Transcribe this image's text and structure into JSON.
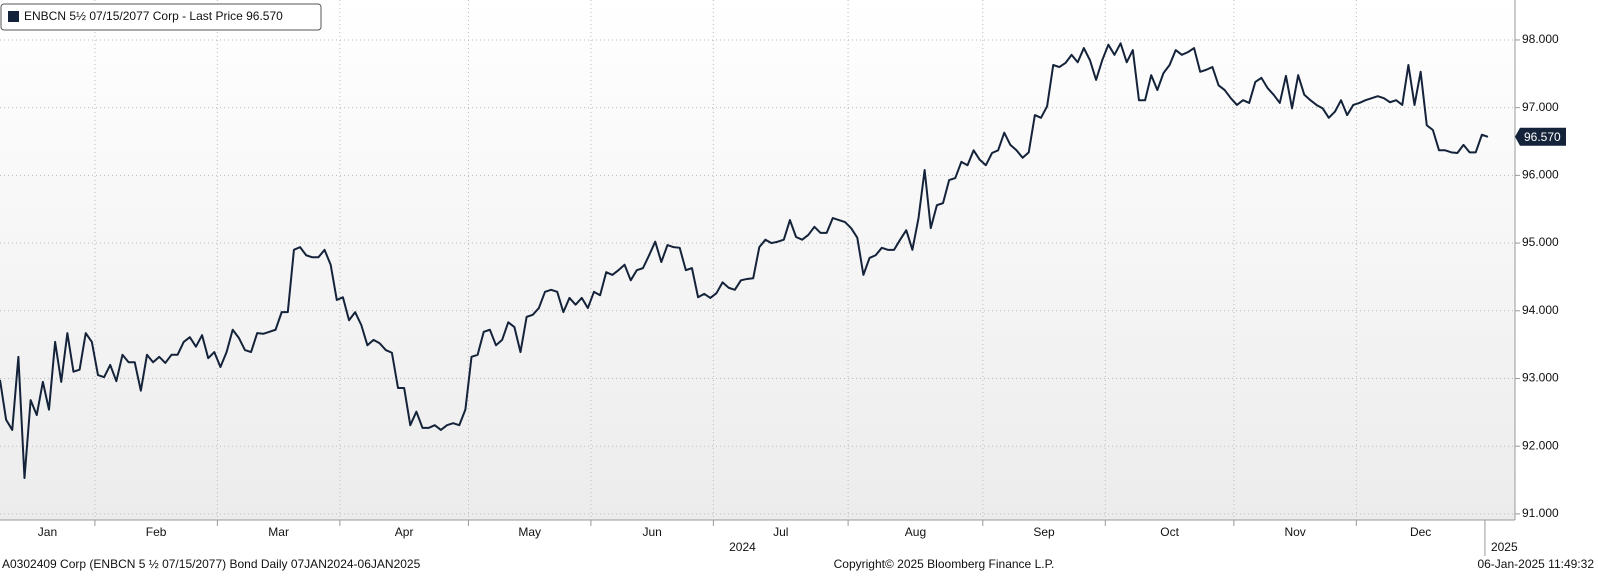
{
  "chart_data": {
    "type": "line",
    "series": [
      {
        "name": "ENBCN 5½ 07/15/2077 Corp - Last Price 96.570",
        "color": "#14233a",
        "values": [
          92.98,
          92.39,
          92.24,
          93.32,
          91.53,
          92.68,
          92.46,
          92.95,
          92.54,
          93.54,
          92.95,
          93.67,
          93.1,
          93.13,
          93.67,
          93.54,
          93.05,
          93.02,
          93.2,
          92.96,
          93.35,
          93.24,
          93.24,
          92.82,
          93.35,
          93.24,
          93.32,
          93.23,
          93.35,
          93.35,
          93.54,
          93.61,
          93.47,
          93.64,
          93.3,
          93.39,
          93.17,
          93.39,
          93.72,
          93.6,
          93.42,
          93.39,
          93.67,
          93.66,
          93.69,
          93.72,
          93.98,
          93.98,
          94.9,
          94.94,
          94.82,
          94.79,
          94.79,
          94.9,
          94.68,
          94.16,
          94.2,
          93.86,
          93.98,
          93.79,
          93.49,
          93.57,
          93.52,
          93.42,
          93.38,
          92.86,
          92.86,
          92.31,
          92.51,
          92.27,
          92.27,
          92.31,
          92.24,
          92.31,
          92.34,
          92.31,
          92.54,
          93.32,
          93.35,
          93.69,
          93.72,
          93.49,
          93.57,
          93.83,
          93.76,
          93.39,
          93.91,
          93.94,
          94.04,
          94.28,
          94.31,
          94.28,
          93.98,
          94.19,
          94.09,
          94.19,
          94.04,
          94.28,
          94.23,
          94.57,
          94.53,
          94.6,
          94.68,
          94.45,
          94.6,
          94.63,
          94.82,
          95.02,
          94.72,
          94.97,
          94.94,
          94.93,
          94.6,
          94.63,
          94.2,
          94.25,
          94.19,
          94.26,
          94.42,
          94.34,
          94.31,
          94.45,
          94.47,
          94.48,
          94.94,
          95.05,
          95.0,
          95.02,
          95.05,
          95.34,
          95.09,
          95.05,
          95.12,
          95.24,
          95.15,
          95.15,
          95.37,
          95.34,
          95.31,
          95.22,
          95.08,
          94.53,
          94.78,
          94.82,
          94.93,
          94.9,
          94.9,
          95.05,
          95.19,
          94.9,
          95.37,
          96.08,
          95.22,
          95.56,
          95.59,
          95.93,
          95.96,
          96.2,
          96.15,
          96.37,
          96.23,
          96.15,
          96.33,
          96.37,
          96.63,
          96.45,
          96.37,
          96.26,
          96.34,
          96.89,
          96.85,
          97.02,
          97.63,
          97.6,
          97.66,
          97.78,
          97.67,
          97.88,
          97.7,
          97.41,
          97.7,
          97.93,
          97.78,
          97.95,
          97.67,
          97.85,
          97.11,
          97.11,
          97.48,
          97.26,
          97.51,
          97.63,
          97.85,
          97.78,
          97.82,
          97.88,
          97.53,
          97.56,
          97.6,
          97.33,
          97.26,
          97.14,
          97.04,
          97.11,
          97.07,
          97.38,
          97.44,
          97.29,
          97.19,
          97.07,
          97.47,
          96.99,
          97.48,
          97.19,
          97.11,
          97.04,
          96.99,
          96.85,
          96.94,
          97.11,
          96.89,
          97.04,
          97.07,
          97.11,
          97.14,
          97.17,
          97.14,
          97.08,
          97.11,
          97.04,
          97.63,
          97.04,
          97.53,
          96.74,
          96.67,
          96.37,
          96.37,
          96.34,
          96.33,
          96.45,
          96.34,
          96.34,
          96.6,
          96.57
        ]
      }
    ],
    "categories": [
      "Jan",
      null,
      null,
      null,
      null,
      null,
      null,
      null,
      null,
      null,
      null,
      null,
      null,
      null,
      null,
      null,
      "Feb",
      null,
      null,
      null,
      null,
      null,
      null,
      null,
      null,
      null,
      null,
      null,
      null,
      null,
      null,
      null,
      null,
      null,
      null,
      null,
      "Mar",
      null,
      null,
      null,
      null,
      null,
      null,
      null,
      null,
      null,
      null,
      null,
      null,
      null,
      null,
      null,
      null,
      null,
      null,
      null,
      "Apr",
      null,
      null,
      null,
      null,
      null,
      null,
      null,
      null,
      null,
      null,
      null,
      null,
      null,
      null,
      null,
      null,
      null,
      null,
      null,
      null,
      "May",
      null,
      null,
      null,
      null,
      null,
      null,
      null,
      null,
      null,
      null,
      null,
      null,
      null,
      null,
      null,
      null,
      null,
      null,
      null,
      "Jun",
      null,
      null,
      null,
      null,
      null,
      null,
      null,
      null,
      null,
      null,
      null,
      null,
      null,
      null,
      null,
      null,
      null,
      null,
      null,
      "Jul",
      null,
      null,
      null,
      null,
      null,
      null,
      null,
      null,
      null,
      null,
      null,
      null,
      null,
      null,
      null,
      null,
      null,
      null,
      null,
      null,
      null,
      "Aug",
      null,
      null,
      null,
      null,
      null,
      null,
      null,
      null,
      null,
      null,
      null,
      null,
      null,
      null,
      null,
      null,
      null,
      null,
      null,
      null,
      null,
      "Sep",
      null,
      null,
      null,
      null,
      null,
      null,
      null,
      null,
      null,
      null,
      null,
      null,
      null,
      null,
      null,
      null,
      null,
      null,
      null,
      "Oct",
      null,
      null,
      null,
      null,
      null,
      null,
      null,
      null,
      null,
      null,
      null,
      null,
      null,
      null,
      null,
      null,
      null,
      null,
      null,
      null,
      "Nov",
      null,
      null,
      null,
      null,
      null,
      null,
      null,
      null,
      null,
      null,
      null,
      null,
      null,
      null,
      null,
      null,
      null,
      null,
      null,
      "Dec",
      null,
      null,
      null,
      null,
      null,
      null,
      null,
      null,
      null,
      null,
      null,
      null,
      null,
      null,
      null,
      null,
      null,
      null,
      null,
      null,
      null
    ],
    "years": [
      "2024",
      "2025"
    ],
    "ylim": [
      90.91,
      98.59
    ],
    "yticks": [
      {
        "value": 91,
        "label": "91.000"
      },
      {
        "value": 92,
        "label": "92.000"
      },
      {
        "value": 93,
        "label": "93.000"
      },
      {
        "value": 94,
        "label": "94.000"
      },
      {
        "value": 95,
        "label": "95.000"
      },
      {
        "value": 96,
        "label": "96.000"
      },
      {
        "value": 97,
        "label": "97.000"
      },
      {
        "value": 98,
        "label": "98.000"
      }
    ],
    "last_price": {
      "value": 96.57,
      "label": "96.570"
    },
    "grid": true,
    "footer": {
      "left": "A0302409 Corp (ENBCN 5 ½ 07/15/2077) Bond  Daily 07JAN2024-06JAN2025",
      "center": "Copyright© 2025 Bloomberg Finance L.P.",
      "right": "06-Jan-2025 11:49:32"
    }
  }
}
